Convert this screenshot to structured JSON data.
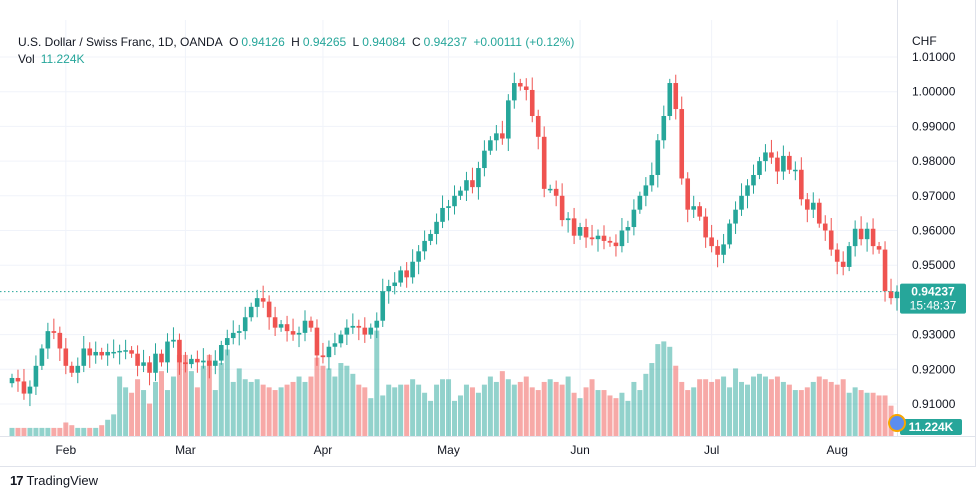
{
  "header": {
    "symbol": "U.S. Dollar / Swiss Franc, 1D, OANDA",
    "o_label": "O",
    "o": "0.94126",
    "h_label": "H",
    "h": "0.94265",
    "l_label": "L",
    "l": "0.94084",
    "c_label": "C",
    "c": "0.94237",
    "change": "+0.00111 (+0.12%)",
    "vol_label": "Vol",
    "vol": "11.224K"
  },
  "axis": {
    "currency": "CHF",
    "last_price": "0.94237",
    "countdown": "15:48:37",
    "last_volume": "11.224K"
  },
  "branding": "TradingView",
  "colors": {
    "up": "#26a69a",
    "down": "#ef5350"
  },
  "chart_data": {
    "type": "candlestick",
    "title": "U.S. Dollar / Swiss Franc, 1D, OANDA",
    "ylabel": "CHF",
    "ylim": [
      0.9,
      1.01
    ],
    "yticks": [
      "0.91000",
      "0.92000",
      "0.93000",
      "0.94000",
      "0.95000",
      "0.96000",
      "0.97000",
      "0.98000",
      "0.99000",
      "1.00000",
      "1.01000"
    ],
    "xticks": [
      {
        "label": "Feb",
        "index": 9
      },
      {
        "label": "Mar",
        "index": 29
      },
      {
        "label": "Apr",
        "index": 52
      },
      {
        "label": "May",
        "index": 73
      },
      {
        "label": "Jun",
        "index": 95
      },
      {
        "label": "Jul",
        "index": 117
      },
      {
        "label": "Aug",
        "index": 138
      }
    ],
    "close": [
      0.9175,
      0.9165,
      0.913,
      0.915,
      0.921,
      0.926,
      0.931,
      0.9305,
      0.926,
      0.921,
      0.919,
      0.921,
      0.926,
      0.924,
      0.925,
      0.924,
      0.925,
      0.925,
      0.9253,
      0.9255,
      0.9245,
      0.921,
      0.922,
      0.919,
      0.9245,
      0.922,
      0.928,
      0.9285,
      0.922,
      0.9215,
      0.923,
      0.922,
      0.9225,
      0.921,
      0.9225,
      0.927,
      0.929,
      0.9305,
      0.931,
      0.935,
      0.938,
      0.9405,
      0.9395,
      0.935,
      0.932,
      0.933,
      0.931,
      0.93,
      0.9305,
      0.934,
      0.932,
      0.924,
      0.9235,
      0.9265,
      0.9275,
      0.93,
      0.932,
      0.9325,
      0.932,
      0.93,
      0.932,
      0.934,
      0.9425,
      0.944,
      0.945,
      0.9485,
      0.9465,
      0.951,
      0.954,
      0.957,
      0.959,
      0.9625,
      0.9665,
      0.967,
      0.97,
      0.9715,
      0.9745,
      0.9725,
      0.978,
      0.983,
      0.986,
      0.988,
      0.9865,
      0.9975,
      1.0025,
      1.0015,
      1.0005,
      0.993,
      0.987,
      0.972,
      0.972,
      0.97,
      0.963,
      0.9635,
      0.9585,
      0.961,
      0.958,
      0.9575,
      0.9585,
      0.957,
      0.9565,
      0.9555,
      0.96,
      0.961,
      0.966,
      0.97,
      0.973,
      0.976,
      0.986,
      0.993,
      1.0025,
      0.995,
      0.975,
      0.966,
      0.967,
      0.964,
      0.958,
      0.9555,
      0.953,
      0.956,
      0.962,
      0.966,
      0.97,
      0.973,
      0.976,
      0.98,
      0.9825,
      0.981,
      0.977,
      0.9815,
      0.9775,
      0.9775,
      0.969,
      0.966,
      0.968,
      0.962,
      0.96,
      0.9545,
      0.951,
      0.9495,
      0.9555,
      0.9605,
      0.9575,
      0.9605,
      0.9555,
      0.9545,
      0.9425,
      0.9405,
      0.94237
    ],
    "volume_k": [
      3,
      3,
      3,
      3,
      3,
      3,
      3,
      3,
      3,
      5,
      4,
      3,
      3,
      3,
      3,
      4,
      6,
      8,
      22,
      18,
      16,
      21,
      17,
      12,
      20,
      24,
      17,
      22,
      30,
      30,
      24,
      18,
      26,
      30,
      17,
      27,
      32,
      20,
      25,
      21,
      20,
      21,
      19,
      18,
      17,
      18,
      19,
      20,
      22,
      20,
      22,
      29,
      26,
      25,
      22,
      27,
      26,
      23,
      19,
      18,
      14,
      39,
      15,
      19,
      18,
      19,
      19,
      21,
      19,
      16,
      13,
      19,
      21,
      21,
      13,
      15,
      19,
      18,
      16,
      19,
      22,
      20,
      24,
      21,
      19,
      20,
      22,
      18,
      17,
      20,
      21,
      20,
      19,
      22,
      16,
      14,
      18,
      21,
      17,
      17,
      15,
      14,
      16,
      13,
      20,
      17,
      23,
      27,
      34,
      35,
      33,
      26,
      20,
      17,
      18,
      21,
      21,
      20,
      21,
      22,
      18,
      25,
      20,
      19,
      22,
      23,
      22,
      21,
      22,
      20,
      19,
      17,
      17,
      18,
      20,
      22,
      21,
      20,
      19,
      21,
      16,
      18,
      17,
      16,
      16,
      15,
      15,
      11.224
    ]
  }
}
